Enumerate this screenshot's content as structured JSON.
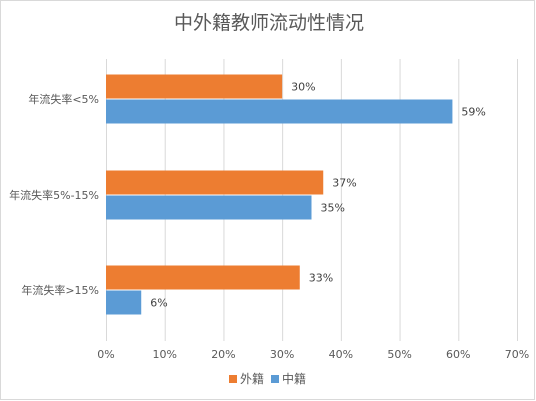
{
  "chart_data": {
    "type": "bar",
    "orientation": "horizontal",
    "title": "中外籍教师流动性情况",
    "categories": [
      "年流失率<5%",
      "年流失率5%-15%",
      "年流失率>15%"
    ],
    "series": [
      {
        "name": "外籍",
        "values": [
          30,
          37,
          33
        ],
        "labels": [
          "30%",
          "37%",
          "33%"
        ],
        "color": "#ed7d31"
      },
      {
        "name": "中籍",
        "values": [
          59,
          35,
          6
        ],
        "labels": [
          "59%",
          "35%",
          "6%"
        ],
        "color": "#5b9bd5"
      }
    ],
    "xlabel": "",
    "ylabel": "",
    "xlim": [
      0,
      70
    ],
    "ticks": [
      0,
      10,
      20,
      30,
      40,
      50,
      60,
      70
    ],
    "tick_labels": [
      "0%",
      "10%",
      "20%",
      "30%",
      "40%",
      "50%",
      "60%",
      "70%"
    ],
    "grid": true,
    "legend_position": "bottom"
  }
}
